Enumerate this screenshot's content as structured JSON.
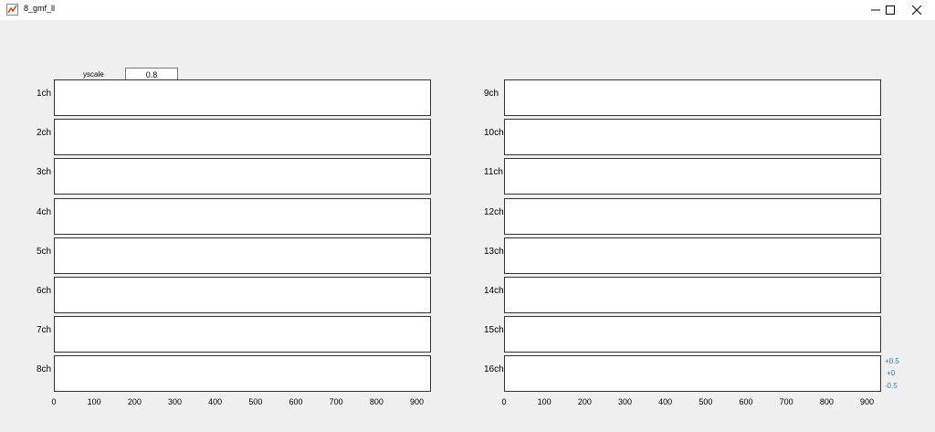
{
  "window": {
    "title": "8_gmf_ll",
    "icons": {
      "app": "matlab-figure-icon",
      "minimize": "minimize-icon",
      "maximize": "maximize-icon",
      "close": "close-icon"
    }
  },
  "control": {
    "label": "yscale",
    "value": "0.8"
  },
  "channels_left": [
    "1ch",
    "2ch",
    "3ch",
    "4ch",
    "5ch",
    "6ch",
    "7ch",
    "8ch"
  ],
  "channels_right": [
    "9ch",
    "10ch",
    "11ch",
    "12ch",
    "13ch",
    "14ch",
    "15ch",
    "16ch"
  ],
  "x_axis": {
    "ticks": [
      "0",
      "100",
      "200",
      "300",
      "400",
      "500",
      "600",
      "700",
      "800",
      "900"
    ]
  },
  "ref_labels": {
    "plus": "+0.5",
    "zero": "+0",
    "minus": "-0.5"
  },
  "chart_data": {
    "type": "line",
    "xlim": [
      0,
      935
    ],
    "xticks": [
      0,
      100,
      200,
      300,
      400,
      500,
      600,
      700,
      800,
      900
    ],
    "panels": 16,
    "line_colors": [
      "#e02020",
      "#00c800",
      "#0000e0",
      "#000000",
      "#e000e0",
      "#00e0e0"
    ],
    "legend": "none"
  }
}
